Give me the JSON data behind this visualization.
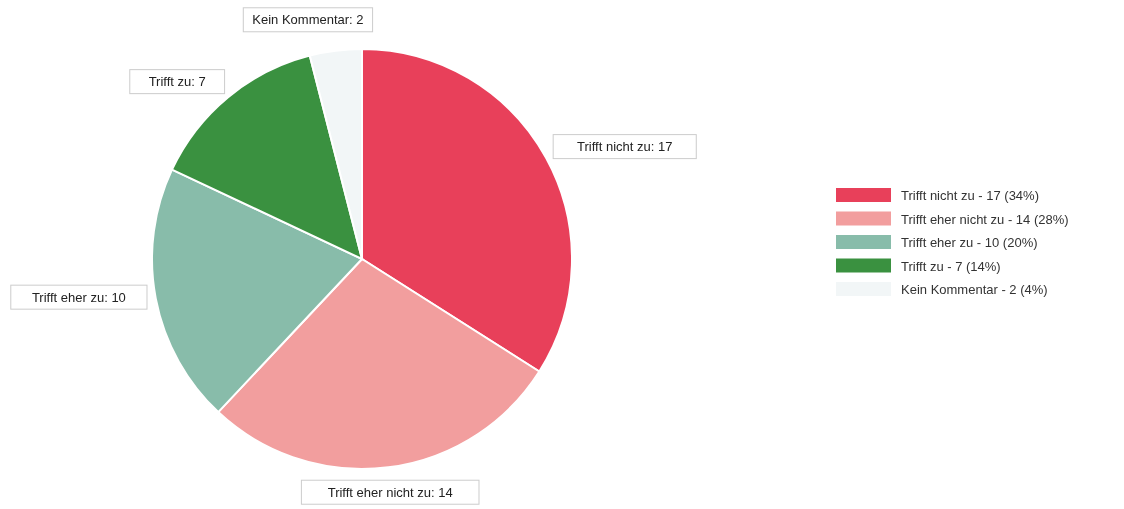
{
  "chart_data": {
    "type": "pie",
    "categories": [
      "Trifft nicht zu - 17 (34%)",
      "Trifft eher nicht zu - 14 (28%)",
      "Trifft eher zu - 10 (20%)",
      "Trifft zu - 7 (14%)",
      "Kein Kommentar - 2 (4%)"
    ],
    "values": [
      17,
      14,
      10,
      7,
      2
    ],
    "value_labels": [
      "Trifft nicht zu: 17",
      "Trifft eher nicht zu: 14",
      "Trifft eher zu: 10",
      "Trifft zu: 7",
      "Kein Kommentar: 2"
    ],
    "colors": [
      "#e8405a",
      "#f29e9e",
      "#88bcaa",
      "#3a9140",
      "#f2f6f7"
    ],
    "legend": "right"
  }
}
